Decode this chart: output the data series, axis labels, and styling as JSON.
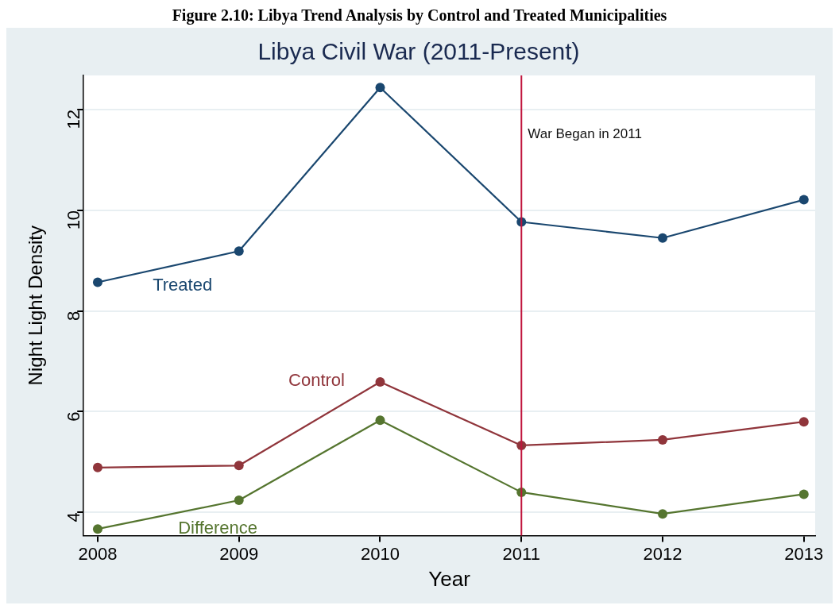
{
  "chart_data": {
    "type": "line",
    "title": "Libya Civil War (2011-Present)",
    "xlabel": "Year",
    "ylabel": "Night Light Density",
    "annotations": [
      "Figure 2.10: Libya Trend Analysis by Control and Treated Municipalities"
    ],
    "x": [
      2008,
      2009,
      2010,
      2011,
      2012,
      2013
    ],
    "series": [
      {
        "name": "Treated",
        "color": "#1a476f",
        "values": [
          8.57,
          9.19,
          12.44,
          9.77,
          9.45,
          10.21
        ]
      },
      {
        "name": "Control",
        "color": "#90353b",
        "values": [
          4.89,
          4.93,
          6.59,
          5.33,
          5.44,
          5.8
        ]
      },
      {
        "name": "Difference",
        "color": "#55752f",
        "values": [
          3.67,
          4.24,
          5.83,
          4.4,
          3.97,
          4.36
        ]
      }
    ],
    "xlim": [
      2007.9,
      2013.08
    ],
    "xticks": [
      2008,
      2009,
      2010,
      2011,
      2012,
      2013
    ],
    "ylim": [
      3.54,
      12.68
    ],
    "yticks": [
      4,
      6,
      8,
      10,
      12
    ],
    "ref_lines": [
      {
        "axis": "x",
        "value": 2011,
        "label": "War Began in 2011",
        "color": "#c0143c"
      }
    ],
    "grid": "y",
    "legend": false,
    "marker": "circle",
    "line_style": "solid"
  }
}
